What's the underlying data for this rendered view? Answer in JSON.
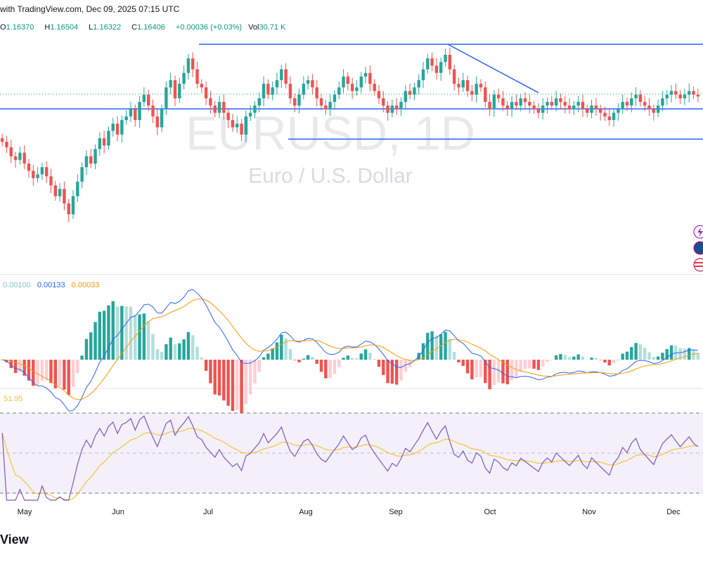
{
  "header": {
    "text": "with TradingView.com, Dec 09, 2025 07:15 UTC"
  },
  "ohlc": {
    "o_label": "O",
    "o": "1.16370",
    "h_label": "H",
    "h": "1.16504",
    "l_label": "L",
    "l": "1.16322",
    "c_label": "C",
    "c": "1.16406",
    "change": "+0.00036 (+0.03%)",
    "vol_label": "Vol",
    "vol": "30.71 K"
  },
  "watermark": {
    "symbol": "EURUSD, 1D",
    "name": "Euro / U.S. Dollar"
  },
  "macd_legend": {
    "hist": "0.00100",
    "macd": "0.00133",
    "signal": "0.00033"
  },
  "rsi_legend": {
    "value": "51.95"
  },
  "footer": {
    "logo": "View"
  },
  "colors": {
    "up": "#26a69a",
    "down": "#ef5350",
    "trendline": "#2962ff",
    "macd": "#2962ff",
    "signal": "#ff9800",
    "rsi": "#7e57c2",
    "rsi_ma": "#f5c33b"
  },
  "chart_data": [
    {
      "type": "candlestick",
      "symbol": "EURUSD",
      "timeframe": "1D",
      "x_labels": [
        "May",
        "Jun",
        "Jul",
        "Aug",
        "Sep",
        "Oct",
        "Nov",
        "Dec"
      ],
      "close_approx": [
        1.138,
        1.135,
        1.13,
        1.128,
        1.132,
        1.126,
        1.122,
        1.118,
        1.12,
        1.124,
        1.119,
        1.114,
        1.108,
        1.112,
        1.104,
        1.098,
        1.108,
        1.116,
        1.124,
        1.13,
        1.126,
        1.134,
        1.14,
        1.136,
        1.144,
        1.148,
        1.142,
        1.15,
        1.152,
        1.156,
        1.15,
        1.16,
        1.164,
        1.158,
        1.152,
        1.146,
        1.156,
        1.168,
        1.172,
        1.162,
        1.17,
        1.176,
        1.184,
        1.178,
        1.17,
        1.168,
        1.162,
        1.158,
        1.154,
        1.16,
        1.154,
        1.15,
        1.146,
        1.148,
        1.142,
        1.152,
        1.154,
        1.158,
        1.162,
        1.17,
        1.164,
        1.168,
        1.172,
        1.178,
        1.17,
        1.162,
        1.158,
        1.164,
        1.17,
        1.172,
        1.168,
        1.162,
        1.158,
        1.156,
        1.16,
        1.164,
        1.168,
        1.174,
        1.17,
        1.166,
        1.168,
        1.174,
        1.176,
        1.17,
        1.166,
        1.162,
        1.158,
        1.154,
        1.158,
        1.156,
        1.16,
        1.166,
        1.164,
        1.168,
        1.172,
        1.178,
        1.184,
        1.18,
        1.176,
        1.182,
        1.186,
        1.178,
        1.17,
        1.168,
        1.172,
        1.166,
        1.164,
        1.17,
        1.168,
        1.16,
        1.156,
        1.164,
        1.162,
        1.158,
        1.156,
        1.16,
        1.158,
        1.162,
        1.16,
        1.158,
        1.156,
        1.154,
        1.158,
        1.16,
        1.158,
        1.162,
        1.16,
        1.158,
        1.156,
        1.158,
        1.16,
        1.156,
        1.154,
        1.158,
        1.156,
        1.154,
        1.152,
        1.15,
        1.154,
        1.156,
        1.16,
        1.158,
        1.162,
        1.164,
        1.16,
        1.158,
        1.156,
        1.154,
        1.158,
        1.162,
        1.164,
        1.166,
        1.164,
        1.162,
        1.164,
        1.166,
        1.164,
        1.163
      ],
      "horizontal_lines": [
        1.1918,
        1.1535,
        1.1395
      ],
      "channel_top": 1.1918,
      "support": 1.1535,
      "aug_low": 1.1395,
      "trendline": {
        "from_date": "Sep 17",
        "from_price": 1.1918,
        "to_date": "Oct 15",
        "to_price": 1.165
      }
    },
    {
      "type": "histogram",
      "name": "MACD",
      "macd_value": "0.00133",
      "signal_value": "0.00033",
      "hist_value": "0.00100"
    },
    {
      "type": "line",
      "name": "RSI",
      "value": "51.95",
      "bands": [
        70,
        50,
        30
      ]
    }
  ]
}
